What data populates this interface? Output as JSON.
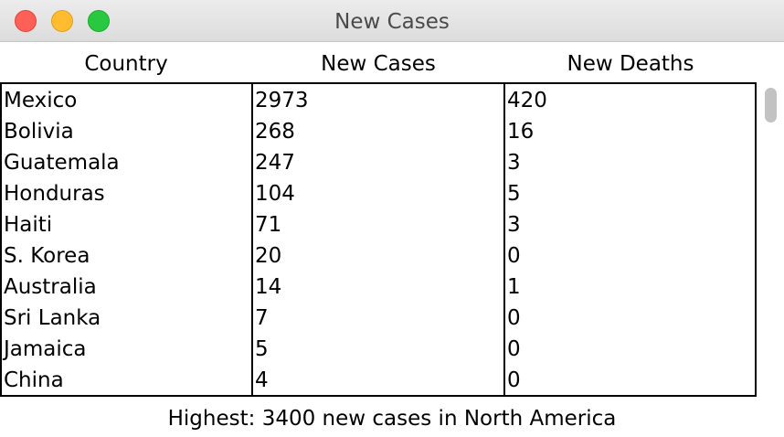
{
  "window": {
    "title": "New Cases"
  },
  "columns": {
    "country": "Country",
    "new_cases": "New Cases",
    "new_deaths": "New Deaths"
  },
  "rows": [
    {
      "country": "Mexico",
      "new_cases": "2973",
      "new_deaths": "420"
    },
    {
      "country": "Bolivia",
      "new_cases": "268",
      "new_deaths": "16"
    },
    {
      "country": "Guatemala",
      "new_cases": "247",
      "new_deaths": "3"
    },
    {
      "country": "Honduras",
      "new_cases": "104",
      "new_deaths": "5"
    },
    {
      "country": "Haiti",
      "new_cases": "71",
      "new_deaths": "3"
    },
    {
      "country": "S. Korea",
      "new_cases": "20",
      "new_deaths": "0"
    },
    {
      "country": "Australia",
      "new_cases": "14",
      "new_deaths": "1"
    },
    {
      "country": "Sri Lanka",
      "new_cases": "7",
      "new_deaths": "0"
    },
    {
      "country": "Jamaica",
      "new_cases": "5",
      "new_deaths": "0"
    },
    {
      "country": "China",
      "new_cases": "4",
      "new_deaths": "0"
    }
  ],
  "status": {
    "text": "Highest: 3400 new cases in North America"
  },
  "icons": {
    "close": "close-window-icon",
    "minimize": "minimize-window-icon",
    "maximize": "maximize-window-icon"
  },
  "colors": {
    "close": "#fe5f57",
    "minimize": "#febc2e",
    "maximize": "#28c840"
  }
}
